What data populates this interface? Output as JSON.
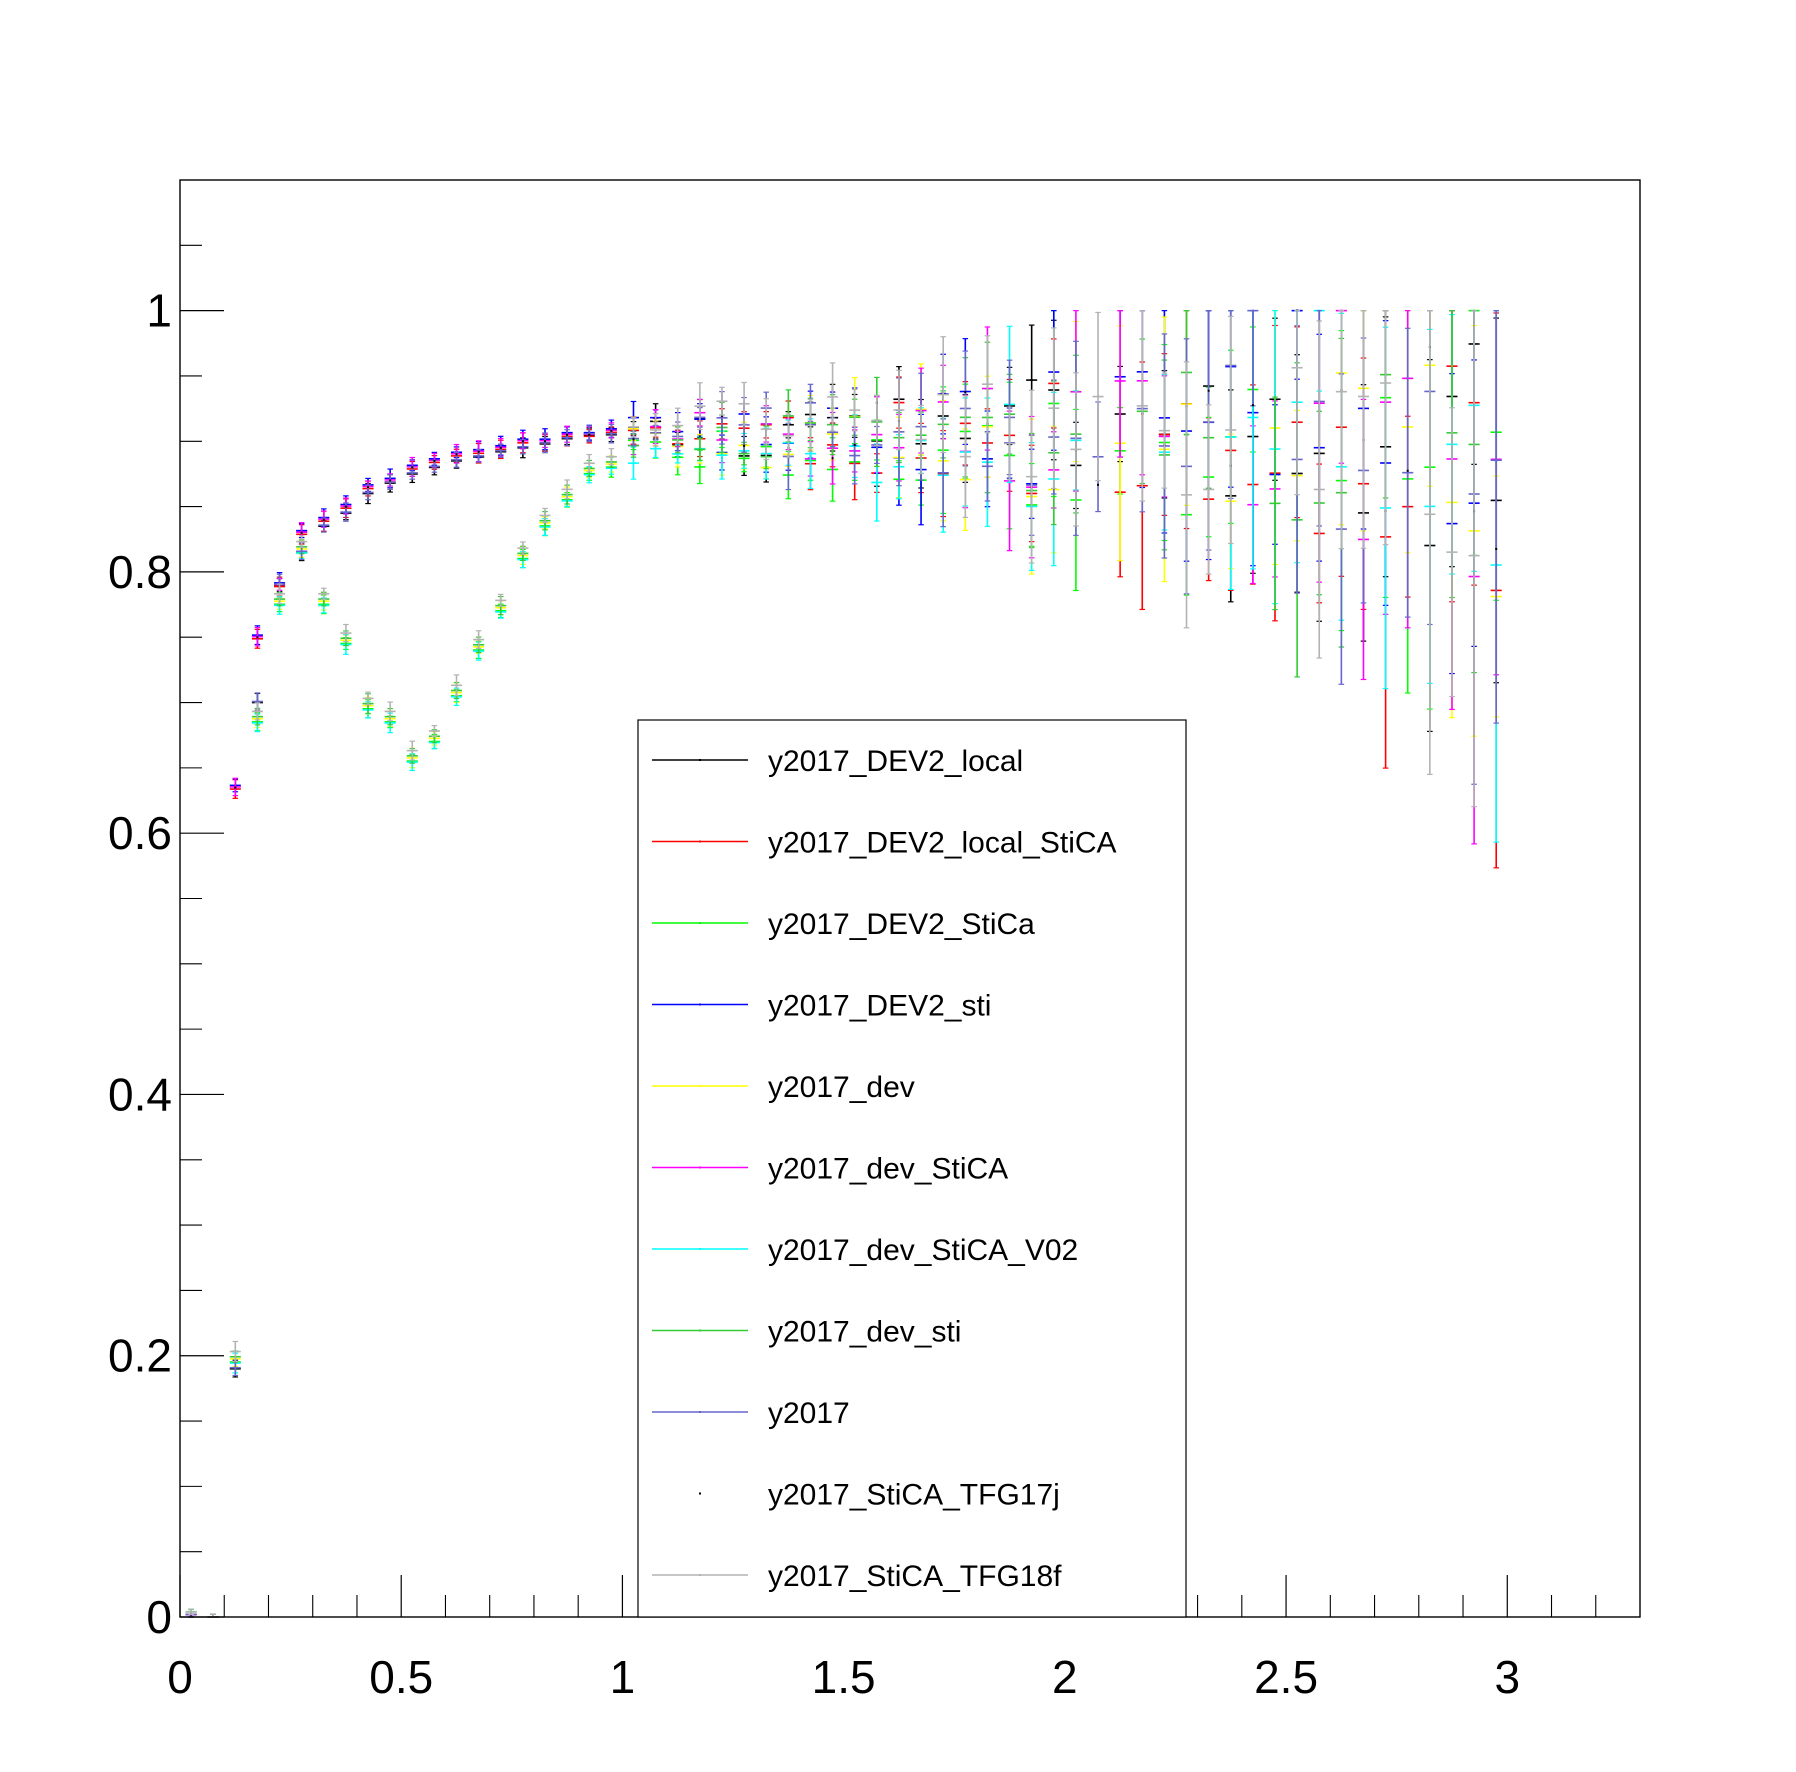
{
  "chart_data": {
    "type": "scatter",
    "title": "",
    "xlabel": "",
    "ylabel": "",
    "xlim": [
      0,
      3.3
    ],
    "ylim": [
      0,
      1.1
    ],
    "grid": false,
    "legend_position": "bottom-center",
    "x_ticks": [
      {
        "value": 0,
        "label": "0"
      },
      {
        "value": 0.5,
        "label": "0.5"
      },
      {
        "value": 1,
        "label": "1"
      },
      {
        "value": 1.5,
        "label": "1.5"
      },
      {
        "value": 2,
        "label": "2"
      },
      {
        "value": 2.5,
        "label": "2.5"
      },
      {
        "value": 3,
        "label": "3"
      }
    ],
    "y_ticks": [
      {
        "value": 0,
        "label": "0"
      },
      {
        "value": 0.2,
        "label": "0.2"
      },
      {
        "value": 0.4,
        "label": "0.4"
      },
      {
        "value": 0.6,
        "label": "0.6"
      },
      {
        "value": 0.8,
        "label": "0.8"
      },
      {
        "value": 1,
        "label": "1"
      }
    ],
    "x_bin_width": 0.05,
    "series": [
      {
        "name": "y2017_DEV2_local",
        "color": "#000000",
        "seed": 1,
        "profile": "a",
        "offset": 0.0
      },
      {
        "name": "y2017_DEV2_local_StiCA",
        "color": "#ff0000",
        "seed": 2,
        "profile": "a",
        "offset": -0.003
      },
      {
        "name": "y2017_DEV2_StiCa",
        "color": "#00ff00",
        "seed": 3,
        "profile": "b",
        "offset": -0.012
      },
      {
        "name": "y2017_DEV2_sti",
        "color": "#0000ff",
        "seed": 4,
        "profile": "a",
        "offset": 0.004
      },
      {
        "name": "y2017_dev",
        "color": "#ffff00",
        "seed": 5,
        "profile": "b",
        "offset": -0.006
      },
      {
        "name": "y2017_dev_StiCA",
        "color": "#ff00ff",
        "seed": 6,
        "profile": "a",
        "offset": 0.001
      },
      {
        "name": "y2017_dev_StiCA_V02",
        "color": "#00ffff",
        "seed": 7,
        "profile": "b",
        "offset": -0.014
      },
      {
        "name": "y2017_dev_sti",
        "color": "#33cc33",
        "seed": 8,
        "profile": "b",
        "offset": -0.002
      },
      {
        "name": "y2017",
        "color": "#6666cc",
        "seed": 9,
        "profile": "a",
        "offset": 0.002
      },
      {
        "name": "y2017_StiCA_TFG17j",
        "color": "#000000",
        "seed": 10,
        "profile": "a",
        "offset": 0.0,
        "marker_only": true
      },
      {
        "name": "y2017_StiCA_TFG18f",
        "color": "#b3b3b3",
        "seed": 11,
        "profile": "b",
        "offset": 0.008
      }
    ],
    "profiles": {
      "a": {
        "x": [
          0.025,
          0.075,
          0.125,
          0.175,
          0.225,
          0.275,
          0.325,
          0.375,
          0.425,
          0.475,
          0.525,
          0.575,
          0.625,
          0.675,
          0.725,
          0.775,
          0.825,
          0.875,
          0.925,
          0.975
        ],
        "y": [
          0.002,
          0.0,
          0.19,
          0.7,
          0.79,
          0.815,
          0.835,
          0.845,
          0.86,
          0.868,
          0.875,
          0.88,
          0.885,
          0.888,
          0.892,
          0.895,
          0.898,
          0.902,
          0.905,
          0.905
        ],
        "y_alt": [
          null,
          null,
          0.635,
          0.75,
          0.79,
          0.83,
          0.84,
          0.85,
          0.865,
          0.87,
          0.88,
          0.885,
          0.89,
          0.892,
          0.895,
          0.9,
          0.9,
          0.905,
          0.905,
          0.908
        ]
      },
      "b": {
        "x": [
          0.025,
          0.075,
          0.125,
          0.175,
          0.225,
          0.275,
          0.325,
          0.375,
          0.425,
          0.475,
          0.525,
          0.575,
          0.625,
          0.675,
          0.725,
          0.775,
          0.825,
          0.875,
          0.925,
          0.975
        ],
        "y": [
          0.004,
          0.0,
          0.2,
          0.69,
          0.78,
          0.82,
          0.78,
          0.75,
          0.7,
          0.69,
          0.66,
          0.675,
          0.71,
          0.745,
          0.775,
          0.815,
          0.84,
          0.86,
          0.88,
          0.885
        ]
      }
    },
    "trend_from_1": {
      "x": [
        1.0,
        1.5,
        2.0,
        2.5,
        3.0
      ],
      "y": [
        0.905,
        0.905,
        0.905,
        0.9,
        0.88
      ],
      "scatter": [
        0.012,
        0.025,
        0.045,
        0.06,
        0.1
      ],
      "err": [
        0.008,
        0.02,
        0.05,
        0.09,
        0.16
      ]
    }
  }
}
